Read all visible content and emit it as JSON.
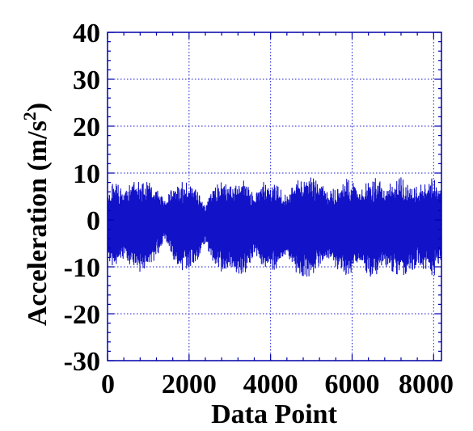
{
  "chart_data": {
    "type": "line",
    "title": "",
    "xlabel": "Data Point",
    "ylabel_main": "Acceleration (m/s",
    "ylabel_sup": "2",
    "ylabel_close": ")",
    "xlim": [
      0,
      8192
    ],
    "ylim": [
      -30,
      40
    ],
    "xticks": [
      0,
      2000,
      4000,
      6000,
      8000
    ],
    "xtick_labels": [
      "0",
      "2000",
      "4000",
      "6000",
      "8000"
    ],
    "yticks": [
      -30,
      -20,
      -10,
      0,
      10,
      20,
      30,
      40
    ],
    "ytick_labels": [
      "-30",
      "-20",
      "-10",
      "0",
      "10",
      "20",
      "30",
      "40"
    ],
    "x_minor_step": 400,
    "y_minor_step": 2,
    "grid": true,
    "n_points": 8192,
    "signal_envelope": {
      "x": [
        0,
        200,
        400,
        600,
        800,
        1000,
        1200,
        1400,
        1600,
        1800,
        2000,
        2200,
        2400,
        2600,
        2800,
        3000,
        3200,
        3400,
        3600,
        3800,
        4000,
        4200,
        4400,
        4600,
        4800,
        5000,
        5200,
        5400,
        5600,
        5800,
        6000,
        6200,
        6400,
        6600,
        6800,
        7000,
        7200,
        7400,
        7600,
        7800,
        8000,
        8192
      ],
      "max": [
        7,
        8,
        6,
        8,
        8,
        8,
        7,
        4,
        7,
        8,
        8,
        6,
        3,
        7,
        8,
        7,
        9,
        8,
        5,
        8,
        8,
        7,
        5,
        8,
        9,
        9,
        8,
        6,
        7,
        9,
        8,
        7,
        8,
        9,
        7,
        8,
        9,
        7,
        7,
        8,
        9,
        6
      ],
      "min": [
        -9,
        -10,
        -8,
        -10,
        -11,
        -10,
        -8,
        -4,
        -8,
        -11,
        -10,
        -9,
        -5,
        -9,
        -11,
        -10,
        -12,
        -11,
        -7,
        -10,
        -11,
        -10,
        -7,
        -11,
        -12,
        -12,
        -10,
        -8,
        -10,
        -12,
        -11,
        -10,
        -12,
        -12,
        -10,
        -11,
        -12,
        -11,
        -10,
        -11,
        -12,
        -9
      ]
    },
    "colors": {
      "series": "#1212c8",
      "grid": "#1a1ad0",
      "axes": "#0000aa"
    }
  }
}
